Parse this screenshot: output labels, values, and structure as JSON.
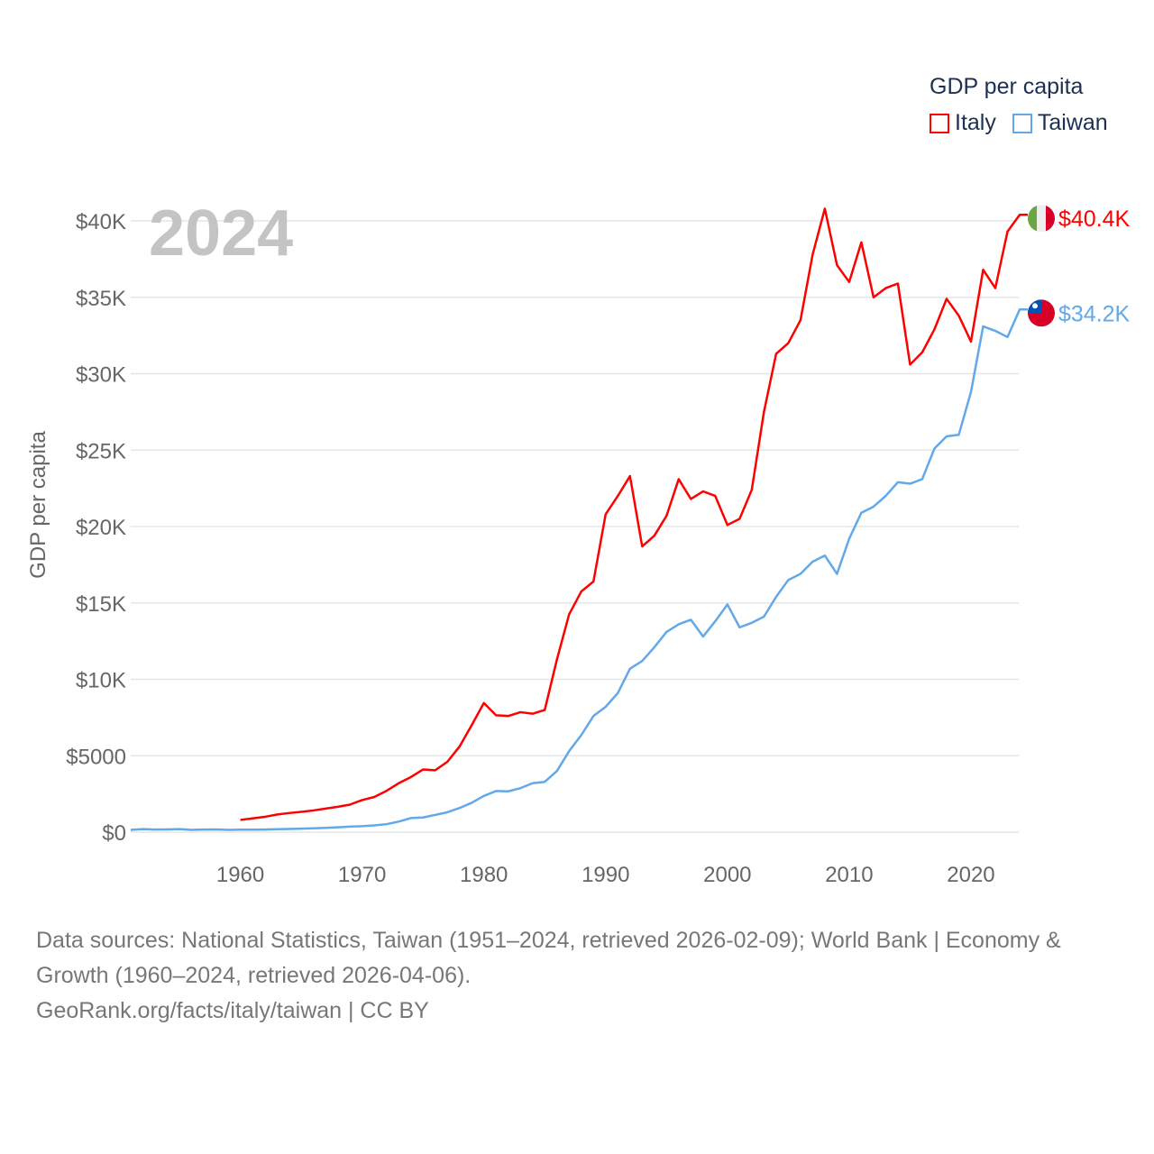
{
  "chart_data": {
    "type": "line",
    "title": "GDP per capita",
    "year_label": "2024",
    "ylabel": "GDP per capita",
    "xlabel": "",
    "xlim": [
      1951,
      2024
    ],
    "ylim": [
      0,
      40000
    ],
    "yticks": [
      0,
      5000,
      10000,
      15000,
      20000,
      25000,
      30000,
      35000,
      40000
    ],
    "ytick_labels": [
      "$0",
      "$5000",
      "$10K",
      "$15K",
      "$20K",
      "$25K",
      "$30K",
      "$35K",
      "$40K"
    ],
    "xticks": [
      1960,
      1970,
      1980,
      1990,
      2000,
      2010,
      2020
    ],
    "xtick_labels": [
      "1960",
      "1970",
      "1980",
      "1990",
      "2000",
      "2010",
      "2020"
    ],
    "grid": true,
    "legend_position": "top-right",
    "series": [
      {
        "name": "Italy",
        "color": "#ff0000",
        "end_label": "$40.4K",
        "flag": "italy-flag",
        "x_start": 1960,
        "values": [
          800,
          900,
          1000,
          1150,
          1250,
          1330,
          1420,
          1540,
          1660,
          1800,
          2100,
          2300,
          2700,
          3200,
          3600,
          4100,
          4050,
          4600,
          5600,
          7000,
          8450,
          7650,
          7600,
          7850,
          7750,
          8000,
          11300,
          14250,
          15750,
          16400,
          20800,
          22000,
          23300,
          18700,
          19400,
          20700,
          23100,
          21800,
          22300,
          22000,
          20100,
          20500,
          22400,
          27500,
          31300,
          32000,
          33500,
          37800,
          40800,
          37100,
          36000,
          38600,
          35000,
          35600,
          35900,
          30600,
          31400,
          32900,
          34900,
          33800,
          32100,
          36800,
          35600,
          39300,
          40400
        ]
      },
      {
        "name": "Taiwan",
        "color": "#63a8e8",
        "end_label": "$34.2K",
        "flag": "taiwan-flag",
        "x_start": 1951,
        "values": [
          150,
          200,
          170,
          180,
          200,
          150,
          170,
          180,
          150,
          160,
          160,
          170,
          190,
          210,
          230,
          250,
          280,
          320,
          360,
          390,
          440,
          520,
          690,
          920,
          960,
          1130,
          1300,
          1580,
          1920,
          2370,
          2690,
          2670,
          2880,
          3200,
          3290,
          4000,
          5300,
          6350,
          7600,
          8200,
          9100,
          10700,
          11200,
          12100,
          13100,
          13600,
          13900,
          12800,
          13800,
          14900,
          13400,
          13700,
          14100,
          15400,
          16500,
          16900,
          17700,
          18100,
          16900,
          19200,
          20900,
          21300,
          22000,
          22900,
          22800,
          23100,
          25100,
          25900,
          26000,
          28800,
          33100,
          32800,
          32400,
          34200
        ]
      }
    ]
  },
  "footer": {
    "sources": "Data sources: National Statistics, Taiwan (1951–2024, retrieved 2026-02-09); World Bank | Economy & Growth (1960–2024, retrieved 2026-04-06).",
    "link": "GeoRank.org/facts/italy/taiwan | CC BY"
  }
}
